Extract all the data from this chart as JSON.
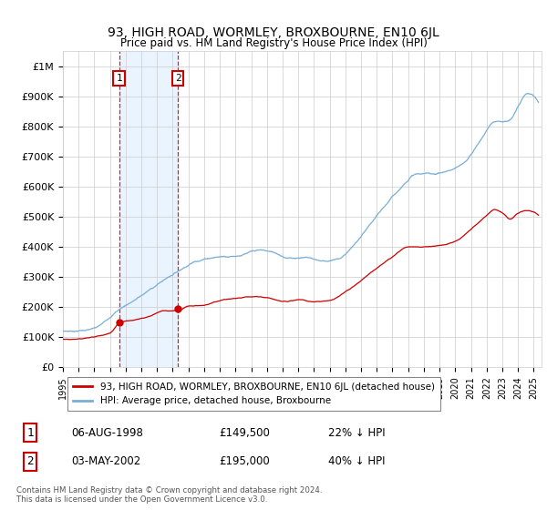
{
  "title": "93, HIGH ROAD, WORMLEY, BROXBOURNE, EN10 6JL",
  "subtitle": "Price paid vs. HM Land Registry's House Price Index (HPI)",
  "ylabel_ticks": [
    "£0",
    "£100K",
    "£200K",
    "£300K",
    "£400K",
    "£500K",
    "£600K",
    "£700K",
    "£800K",
    "£900K",
    "£1M"
  ],
  "ytick_values": [
    0,
    100000,
    200000,
    300000,
    400000,
    500000,
    600000,
    700000,
    800000,
    900000,
    1000000
  ],
  "ylim": [
    0,
    1050000
  ],
  "xlim_start": 1995.0,
  "xlim_end": 2025.5,
  "transaction1": {
    "date_num": 1998.58,
    "price": 149500,
    "label": "1"
  },
  "transaction2": {
    "date_num": 2002.33,
    "price": 195000,
    "label": "2"
  },
  "legend_line1": "93, HIGH ROAD, WORMLEY, BROXBOURNE, EN10 6JL (detached house)",
  "legend_line2": "HPI: Average price, detached house, Broxbourne",
  "table_row1_num": "1",
  "table_row1_date": "06-AUG-1998",
  "table_row1_price": "£149,500",
  "table_row1_pct": "22% ↓ HPI",
  "table_row2_num": "2",
  "table_row2_date": "03-MAY-2002",
  "table_row2_price": "£195,000",
  "table_row2_pct": "40% ↓ HPI",
  "footer": "Contains HM Land Registry data © Crown copyright and database right 2024.\nThis data is licensed under the Open Government Licence v3.0.",
  "color_red": "#cc0000",
  "color_blue": "#7aaed6",
  "color_shading": "#ddeeff",
  "background_color": "#ffffff",
  "grid_color": "#cccccc",
  "hpi_keypoints": [
    [
      1995.0,
      120000
    ],
    [
      1997.0,
      130000
    ],
    [
      1998.58,
      193000
    ],
    [
      2000.0,
      240000
    ],
    [
      2002.33,
      323000
    ],
    [
      2003.5,
      360000
    ],
    [
      2004.5,
      375000
    ],
    [
      2006.0,
      385000
    ],
    [
      2007.5,
      400000
    ],
    [
      2008.5,
      390000
    ],
    [
      2009.5,
      375000
    ],
    [
      2010.5,
      380000
    ],
    [
      2011.5,
      370000
    ],
    [
      2012.5,
      375000
    ],
    [
      2013.5,
      420000
    ],
    [
      2014.5,
      480000
    ],
    [
      2015.5,
      540000
    ],
    [
      2016.5,
      600000
    ],
    [
      2017.5,
      650000
    ],
    [
      2018.5,
      650000
    ],
    [
      2019.5,
      660000
    ],
    [
      2020.5,
      680000
    ],
    [
      2021.5,
      750000
    ],
    [
      2022.5,
      820000
    ],
    [
      2023.5,
      830000
    ],
    [
      2024.0,
      870000
    ],
    [
      2024.5,
      910000
    ],
    [
      2025.3,
      880000
    ]
  ],
  "red_keypoints": [
    [
      1995.0,
      93000
    ],
    [
      1996.0,
      97000
    ],
    [
      1997.0,
      103000
    ],
    [
      1998.0,
      115000
    ],
    [
      1998.58,
      149500
    ],
    [
      1999.5,
      160000
    ],
    [
      2000.5,
      175000
    ],
    [
      2001.5,
      195000
    ],
    [
      2002.33,
      195000
    ],
    [
      2003.0,
      210000
    ],
    [
      2004.0,
      215000
    ],
    [
      2005.0,
      230000
    ],
    [
      2006.0,
      240000
    ],
    [
      2007.0,
      245000
    ],
    [
      2008.0,
      240000
    ],
    [
      2009.0,
      228000
    ],
    [
      2010.0,
      232000
    ],
    [
      2011.0,
      225000
    ],
    [
      2012.0,
      228000
    ],
    [
      2013.0,
      255000
    ],
    [
      2014.0,
      290000
    ],
    [
      2015.0,
      330000
    ],
    [
      2016.0,
      365000
    ],
    [
      2017.0,
      395000
    ],
    [
      2018.0,
      395000
    ],
    [
      2019.0,
      400000
    ],
    [
      2020.0,
      415000
    ],
    [
      2021.0,
      455000
    ],
    [
      2022.0,
      500000
    ],
    [
      2022.5,
      520000
    ],
    [
      2023.0,
      510000
    ],
    [
      2023.5,
      490000
    ],
    [
      2024.0,
      510000
    ],
    [
      2024.5,
      520000
    ],
    [
      2025.3,
      505000
    ]
  ]
}
